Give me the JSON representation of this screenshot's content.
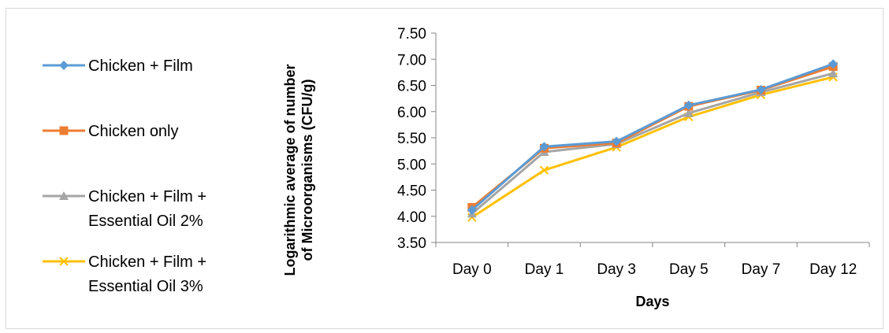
{
  "chart_data": {
    "type": "line",
    "categories": [
      "Day 0",
      "Day 1",
      "Day 3",
      "Day 5",
      "Day 7",
      "Day 12"
    ],
    "xlabel": "Days",
    "ylabel": [
      "Logarithmic average of number",
      "of Microorganisms (CFU/g)"
    ],
    "ylim": [
      3.5,
      7.5
    ],
    "ytick_step": 0.5,
    "ytick_labels": [
      "3.50",
      "4.00",
      "4.50",
      "5.00",
      "5.50",
      "6.00",
      "6.50",
      "7.00",
      "7.50"
    ],
    "grid": false,
    "legend_position": "left",
    "series": [
      {
        "name": [
          "Chicken + Film"
        ],
        "color": "#5b9bd5",
        "marker": "diamond",
        "values": [
          4.12,
          5.33,
          5.43,
          6.12,
          6.42,
          6.91
        ]
      },
      {
        "name": [
          "Chicken only"
        ],
        "color": "#ed7d31",
        "marker": "square",
        "values": [
          4.17,
          5.3,
          5.4,
          6.1,
          6.41,
          6.86
        ]
      },
      {
        "name": [
          "Chicken + Film +",
          "Essential Oil 2%"
        ],
        "color": "#a5a5a5",
        "marker": "triangle",
        "values": [
          4.05,
          5.23,
          5.38,
          5.97,
          6.37,
          6.73
        ]
      },
      {
        "name": [
          "Chicken + Film +",
          "Essential Oil 3%"
        ],
        "color": "#ffc000",
        "marker": "x",
        "values": [
          3.98,
          4.88,
          5.32,
          5.9,
          6.32,
          6.66
        ]
      }
    ]
  }
}
